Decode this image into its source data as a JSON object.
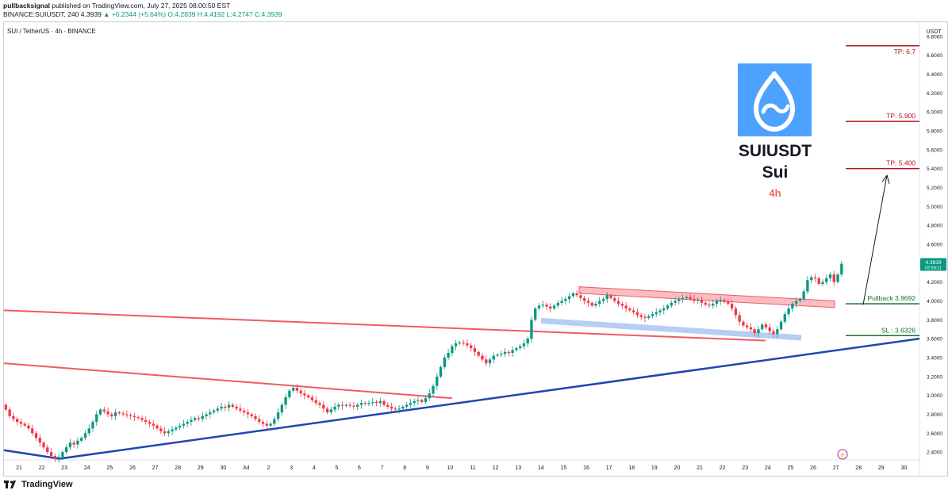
{
  "header": {
    "author": "pullbacksignal",
    "published_text": "published on TradingView.com, July 27, 2025 08:00:50 EST",
    "symbol_line_prefix": "BINANCE:SUIUSDT, 240",
    "last": "4.3939",
    "change": "+0.2344 (+5.64%)",
    "ohlc": "O:4.2839 H:4.4192 L:4.2747 C:4.3939"
  },
  "pair_title": "SUI / TetherUS · 4h · BINANCE",
  "branding": "TradingView",
  "colors": {
    "up": "#089981",
    "down": "#f23645",
    "trendline_red": "#f05a63",
    "support_blue": "#1e46b4",
    "box_red": "#f7a8ae",
    "box_blue": "#a9c4f2",
    "tp": "#b0181f",
    "pullback": "#1b6e2a",
    "sl": "#1b6e2a",
    "logo_bg": "#4da2ff"
  },
  "chart_data": {
    "type": "candlestick",
    "y_axis": {
      "currency": "USDT",
      "scale": "linear",
      "min": 2.25,
      "max": 6.95,
      "ticks": [
        2.4,
        2.6,
        2.8,
        3.0,
        3.2,
        3.4,
        3.6,
        3.8,
        4.0,
        4.2,
        4.4,
        4.6,
        4.8,
        5.0,
        5.2,
        5.4,
        5.6,
        5.8,
        6.0,
        6.2,
        6.4,
        6.6,
        6.8
      ],
      "tick_labels": [
        "2.4000",
        "2.6000",
        "2.8000",
        "3.0000",
        "3.2000",
        "3.4000",
        "3.6000",
        "3.8000",
        "4.0000",
        "4.2000",
        "4.4000",
        "4.6000",
        "4.8000",
        "5.0000",
        "5.2000",
        "5.4000",
        "5.6000",
        "5.8000",
        "6.0000",
        "6.2000",
        "6.4000",
        "6.6000",
        "6.8000"
      ]
    },
    "x_axis": {
      "labels": [
        "21",
        "22",
        "23",
        "24",
        "25",
        "26",
        "27",
        "28",
        "29",
        "30",
        "Jul",
        "2",
        "3",
        "4",
        "5",
        "6",
        "7",
        "8",
        "9",
        "10",
        "11",
        "12",
        "13",
        "14",
        "15",
        "16",
        "17",
        "18",
        "19",
        "20",
        "21",
        "22",
        "23",
        "24",
        "25",
        "26",
        "27",
        "28",
        "29",
        "30"
      ],
      "start_day": 21,
      "candles_per_day": 6
    },
    "last_price_label": "4.3939",
    "countdown_label": "02:59:11",
    "closes": [
      2.85,
      2.78,
      2.75,
      2.72,
      2.7,
      2.68,
      2.65,
      2.6,
      2.55,
      2.5,
      2.45,
      2.4,
      2.36,
      2.33,
      2.35,
      2.4,
      2.45,
      2.5,
      2.48,
      2.52,
      2.55,
      2.6,
      2.65,
      2.72,
      2.8,
      2.85,
      2.83,
      2.8,
      2.78,
      2.82,
      2.81,
      2.8,
      2.79,
      2.78,
      2.77,
      2.76,
      2.74,
      2.72,
      2.7,
      2.68,
      2.65,
      2.62,
      2.6,
      2.62,
      2.64,
      2.66,
      2.68,
      2.7,
      2.72,
      2.74,
      2.76,
      2.75,
      2.78,
      2.8,
      2.82,
      2.84,
      2.86,
      2.88,
      2.87,
      2.9,
      2.88,
      2.86,
      2.84,
      2.82,
      2.8,
      2.78,
      2.75,
      2.72,
      2.7,
      2.68,
      2.7,
      2.75,
      2.82,
      2.9,
      2.98,
      3.05,
      3.08,
      3.05,
      3.02,
      3.0,
      2.98,
      2.95,
      2.92,
      2.9,
      2.86,
      2.82,
      2.85,
      2.88,
      2.9,
      2.89,
      2.9,
      2.89,
      2.88,
      2.9,
      2.92,
      2.91,
      2.92,
      2.93,
      2.92,
      2.94,
      2.9,
      2.88,
      2.86,
      2.85,
      2.86,
      2.88,
      2.9,
      2.92,
      2.94,
      2.95,
      2.93,
      2.97,
      3.02,
      3.1,
      3.2,
      3.3,
      3.4,
      3.45,
      3.52,
      3.55,
      3.56,
      3.55,
      3.53,
      3.5,
      3.46,
      3.42,
      3.38,
      3.34,
      3.38,
      3.42,
      3.43,
      3.44,
      3.46,
      3.45,
      3.48,
      3.5,
      3.52,
      3.55,
      3.6,
      3.8,
      3.92,
      3.95,
      3.96,
      3.94,
      3.92,
      3.95,
      3.98,
      4.0,
      4.02,
      4.05,
      4.08,
      4.06,
      4.03,
      4.0,
      3.98,
      3.95,
      3.97,
      4.0,
      4.02,
      4.06,
      4.03,
      4.0,
      3.97,
      3.95,
      3.92,
      3.9,
      3.88,
      3.85,
      3.83,
      3.82,
      3.84,
      3.86,
      3.88,
      3.9,
      3.92,
      3.95,
      3.98,
      4.0,
      4.02,
      4.03,
      4.04,
      4.02,
      4.0,
      4.01,
      3.98,
      3.96,
      3.95,
      3.97,
      4.0,
      4.01,
      3.99,
      3.97,
      3.92,
      3.85,
      3.78,
      3.74,
      3.72,
      3.7,
      3.66,
      3.7,
      3.75,
      3.72,
      3.68,
      3.65,
      3.7,
      3.78,
      3.86,
      3.92,
      3.97,
      4.0,
      4.02,
      4.1,
      4.22,
      4.25,
      4.24,
      4.18,
      4.2,
      4.24,
      4.28,
      4.2,
      4.28,
      4.3939
    ]
  },
  "annotations": {
    "tp1": "TP: 6.7",
    "tp2": "TP: 5.900",
    "tp3": "TP: 5.400",
    "pullback": "Pullback 3.9692",
    "sl": "SL : 3.6326",
    "levels": {
      "tp1": 6.7,
      "tp2": 5.9,
      "tp3": 5.4,
      "pullback": 3.9692,
      "sl": 3.6326
    }
  },
  "logo_card": {
    "ticker": "SUIUSDT",
    "name": "Sui",
    "timeframe": "4h"
  }
}
